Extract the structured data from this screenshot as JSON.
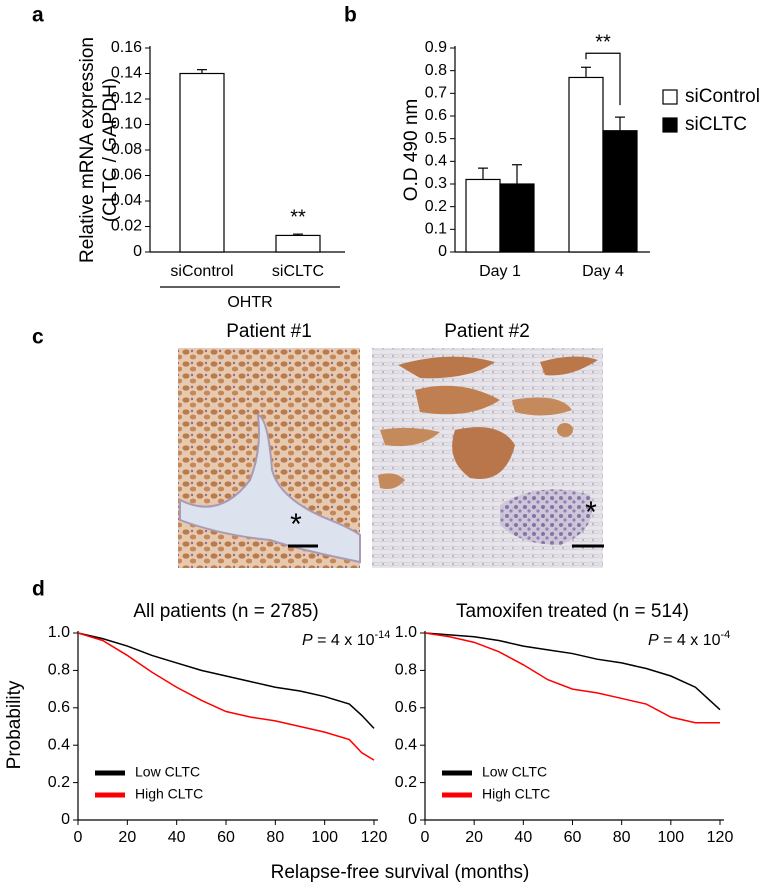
{
  "panel_labels": [
    "a",
    "b",
    "c",
    "d"
  ],
  "chart_data": [
    {
      "type": "bar",
      "ylabel": [
        "Relative mRNA expression",
        "(CLTC / GAPDH)"
      ],
      "categories": [
        "siControl",
        "siCLTC"
      ],
      "group_label": "OHTR",
      "values": [
        0.14,
        0.013
      ],
      "errors": [
        0.003,
        0.001
      ],
      "color": "#ffffff",
      "ylim": [
        0,
        0.16
      ],
      "yticks": [
        0,
        0.02,
        0.04,
        0.06,
        0.08,
        {
          "value": 0.1,
          "label": "0.10"
        },
        0.12,
        0.14,
        0.16
      ],
      "annotation": "**"
    },
    {
      "type": "bar",
      "ylabel": "O.D 490 nm",
      "categories": [
        "Day 1",
        "Day 4"
      ],
      "series": [
        {
          "name": "siControl",
          "color": "#ffffff",
          "values": [
            0.32,
            0.77
          ],
          "errors": [
            0.05,
            0.045
          ]
        },
        {
          "name": "siCLTC",
          "color": "#000000",
          "values": [
            0.3,
            0.535
          ],
          "errors": [
            0.085,
            0.06
          ]
        }
      ],
      "ylim": [
        0,
        0.9
      ],
      "yticks": [
        0,
        0.1,
        0.2,
        0.3,
        0.4,
        0.5,
        0.6,
        0.7,
        0.8,
        0.9
      ],
      "annotation": "**",
      "legend": "right"
    },
    {
      "type": "line",
      "title": "All patients (n = 2785)",
      "annotation": {
        "italic": "P",
        "text": " = 4 x 10",
        "exponent": "-14"
      },
      "x": [
        0,
        10,
        20,
        30,
        40,
        50,
        60,
        70,
        80,
        90,
        100,
        110,
        115,
        120
      ],
      "series": [
        {
          "name": "Low CLTC",
          "color": "#000000",
          "values": [
            1.0,
            0.97,
            0.93,
            0.88,
            0.84,
            0.8,
            0.77,
            0.74,
            0.71,
            0.69,
            0.66,
            0.62,
            0.56,
            0.49
          ]
        },
        {
          "name": "High CLTC",
          "color": "#ff0000",
          "values": [
            1.0,
            0.96,
            0.88,
            0.79,
            0.71,
            0.64,
            0.58,
            0.55,
            0.53,
            0.5,
            0.47,
            0.43,
            0.36,
            0.32
          ]
        }
      ],
      "xlim": [
        0,
        120
      ],
      "xticks": [
        0,
        20,
        40,
        60,
        80,
        100,
        120
      ],
      "ylim": [
        0,
        1
      ],
      "yticks": [
        0,
        0.2,
        0.4,
        0.6,
        0.8,
        {
          "value": 1,
          "label": "1.0"
        }
      ],
      "legend": "lower left"
    },
    {
      "type": "line",
      "title": "Tamoxifen treated (n = 514)",
      "annotation": {
        "italic": "P",
        "text": " = 4 x 10",
        "exponent": "-4"
      },
      "x": [
        0,
        10,
        20,
        30,
        40,
        50,
        60,
        70,
        80,
        90,
        100,
        110,
        115,
        120
      ],
      "series": [
        {
          "name": "Low CLTC",
          "color": "#000000",
          "values": [
            1.0,
            0.99,
            0.98,
            0.96,
            0.93,
            0.91,
            0.89,
            0.86,
            0.84,
            0.81,
            0.77,
            0.71,
            0.65,
            0.59
          ]
        },
        {
          "name": "High CLTC",
          "color": "#ff0000",
          "values": [
            1.0,
            0.98,
            0.95,
            0.9,
            0.83,
            0.75,
            0.7,
            0.68,
            0.65,
            0.62,
            0.55,
            0.52,
            0.52,
            0.52
          ]
        }
      ],
      "xlim": [
        0,
        120
      ],
      "xticks": [
        0,
        20,
        40,
        60,
        80,
        100,
        120
      ],
      "ylim": [
        0,
        1
      ],
      "yticks": [
        0,
        0.2,
        0.4,
        0.6,
        0.8,
        {
          "value": 1,
          "label": "1.0"
        }
      ],
      "legend": "lower left"
    }
  ],
  "images": {
    "titles": [
      "Patient #1",
      "Patient #2"
    ],
    "markers": [
      "*",
      "*"
    ]
  },
  "shared_axes": {
    "ylabel": "Probability",
    "xlabel": "Relapse-free survival  (months)"
  }
}
